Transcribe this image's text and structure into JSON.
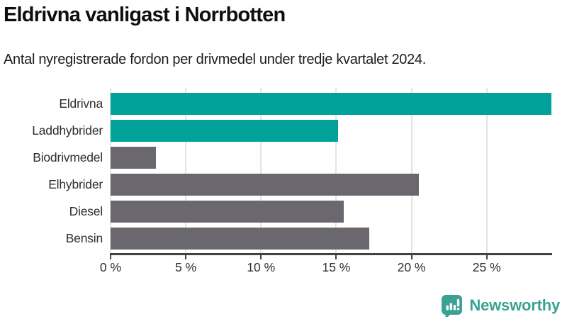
{
  "header": {
    "title": "Eldrivna vanligast i Norrbotten",
    "subtitle": "Antal nyregistrerade fordon per drivmedel under tredje kvartalet 2024."
  },
  "chart_data": {
    "type": "bar",
    "orientation": "horizontal",
    "title": "Eldrivna vanligast i Norrbotten",
    "subtitle": "Antal nyregistrerade fordon per drivmedel under tredje kvartalet 2024.",
    "categories": [
      "Eldrivna",
      "Laddhybrider",
      "Biodrivmedel",
      "Elhybrider",
      "Diesel",
      "Bensin"
    ],
    "values": [
      29.3,
      15.1,
      3.0,
      20.5,
      15.5,
      17.2
    ],
    "unit": "%",
    "bar_colors": [
      "#00a29a",
      "#00a29a",
      "#6a676e",
      "#6a676e",
      "#6a676e",
      "#6a676e"
    ],
    "highlight_color": "#00a29a",
    "default_color": "#6a676e",
    "xlim": [
      0,
      29.3
    ],
    "x_ticks": [
      0,
      5,
      10,
      15,
      20,
      25
    ],
    "x_tick_labels": [
      "0 %",
      "5 %",
      "10 %",
      "15 %",
      "20 %",
      "25 %"
    ],
    "grid": true,
    "gridline_color": "#e4e4e4",
    "axis_color": "#424242",
    "legend": "none",
    "value_labels": false
  },
  "footer": {
    "brand": "Newsworthy",
    "brand_color": "#3aa292",
    "logo_icon": "bar-chart-speech-bubble-icon"
  }
}
